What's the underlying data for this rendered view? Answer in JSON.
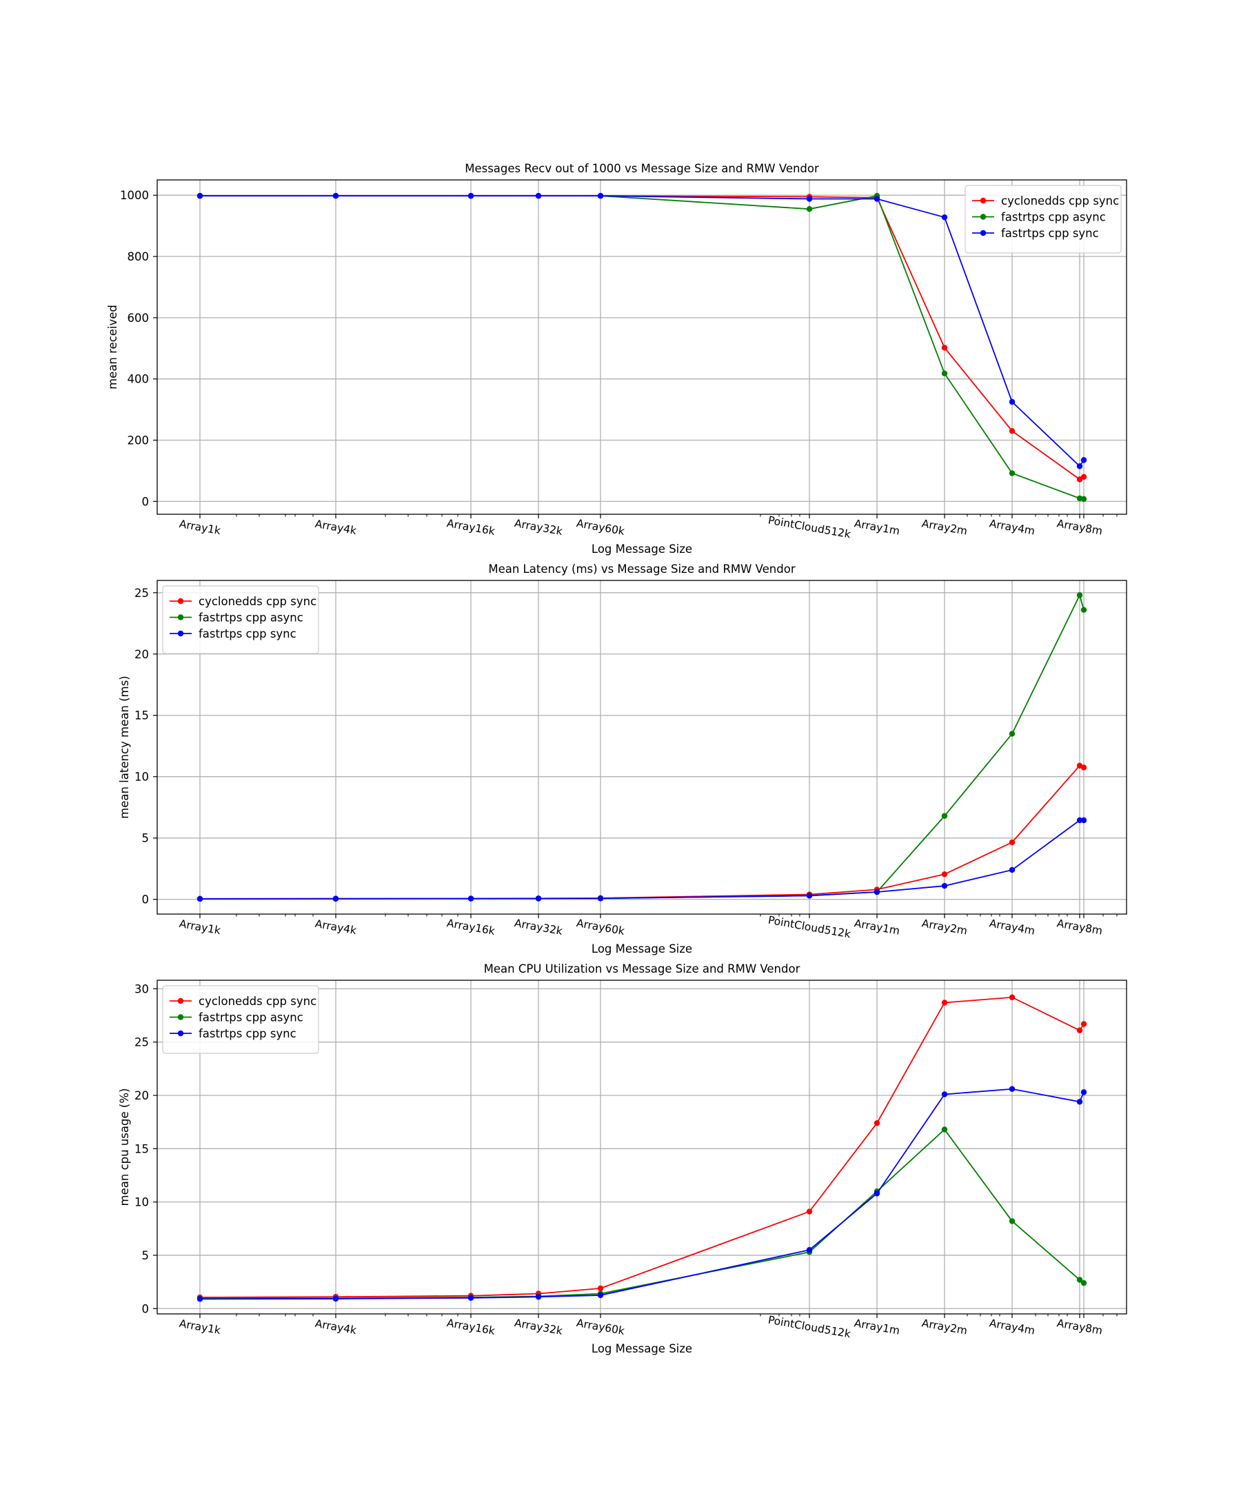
{
  "colors": {
    "cyclonedds": "#ff0000",
    "fastrtps_async": "#008000",
    "fastrtps_sync": "#0000ff",
    "grid": "#b0b0b0"
  },
  "chart_data": [
    {
      "type": "line",
      "title": "Messages Recv out of 1000 vs Message Size and RMW Vendor",
      "xlabel": "Log Message Size",
      "ylabel": "mean received",
      "xscale": "log",
      "ylim": [
        -42,
        1050
      ],
      "yticks": [
        0,
        200,
        400,
        600,
        800,
        1000
      ],
      "grid": true,
      "legend": "top-right",
      "categories": [
        "Array1k",
        "Array4k",
        "Array16k",
        "Array32k",
        "Array60k",
        "PointCloud512k",
        "Array1m",
        "Array2m",
        "Array4m",
        "Array8m"
      ],
      "series": [
        {
          "name": "cyclonedds cpp sync",
          "color": "#ff0000",
          "values": [
            998,
            998,
            998,
            998,
            998,
            995,
            992,
            502,
            230,
            72
          ],
          "extra": 80
        },
        {
          "name": "fastrtps cpp async",
          "color": "#008000",
          "values": [
            998,
            998,
            998,
            998,
            998,
            955,
            998,
            418,
            92,
            10
          ],
          "extra": 8
        },
        {
          "name": "fastrtps cpp sync",
          "color": "#0000ff",
          "values": [
            998,
            998,
            998,
            998,
            998,
            988,
            988,
            928,
            325,
            115
          ],
          "extra": 135
        }
      ]
    },
    {
      "type": "line",
      "title": "Mean Latency (ms) vs Message Size and RMW Vendor",
      "xlabel": "Log Message Size",
      "ylabel": "mean latency mean (ms)",
      "xscale": "log",
      "ylim": [
        -1.2,
        26
      ],
      "yticks": [
        0,
        5,
        10,
        15,
        20,
        25
      ],
      "grid": true,
      "legend": "top-left",
      "categories": [
        "Array1k",
        "Array4k",
        "Array16k",
        "Array32k",
        "Array60k",
        "PointCloud512k",
        "Array1m",
        "Array2m",
        "Array4m",
        "Array8m"
      ],
      "series": [
        {
          "name": "cyclonedds cpp sync",
          "color": "#ff0000",
          "values": [
            0.05,
            0.06,
            0.07,
            0.08,
            0.1,
            0.4,
            0.8,
            2.05,
            4.65,
            10.9
          ],
          "extra": 10.75
        },
        {
          "name": "fastrtps cpp async",
          "color": "#008000",
          "values": [
            0.04,
            0.05,
            0.06,
            0.07,
            0.08,
            0.3,
            0.6,
            6.8,
            13.5,
            24.8
          ],
          "extra": 23.6
        },
        {
          "name": "fastrtps cpp sync",
          "color": "#0000ff",
          "values": [
            0.04,
            0.05,
            0.06,
            0.07,
            0.08,
            0.3,
            0.6,
            1.1,
            2.4,
            6.45
          ],
          "extra": 6.45
        }
      ]
    },
    {
      "type": "line",
      "title": "Mean CPU Utilization vs Message Size and RMW Vendor",
      "xlabel": "Log Message Size",
      "ylabel": "mean cpu usage (%)",
      "xscale": "log",
      "ylim": [
        -0.5,
        30.8
      ],
      "yticks": [
        0,
        5,
        10,
        15,
        20,
        25,
        30
      ],
      "grid": true,
      "legend": "top-left",
      "categories": [
        "Array1k",
        "Array4k",
        "Array16k",
        "Array32k",
        "Array60k",
        "PointCloud512k",
        "Array1m",
        "Array2m",
        "Array4m",
        "Array8m"
      ],
      "series": [
        {
          "name": "cyclonedds cpp sync",
          "color": "#ff0000",
          "values": [
            1.05,
            1.1,
            1.2,
            1.4,
            1.9,
            9.1,
            17.4,
            28.7,
            29.2,
            26.1
          ],
          "extra": 26.7
        },
        {
          "name": "fastrtps cpp async",
          "color": "#008000",
          "values": [
            0.95,
            0.97,
            1.05,
            1.15,
            1.4,
            5.3,
            11.0,
            16.8,
            8.2,
            2.7
          ],
          "extra": 2.4
        },
        {
          "name": "fastrtps cpp sync",
          "color": "#0000ff",
          "values": [
            0.9,
            0.92,
            1.0,
            1.1,
            1.25,
            5.5,
            10.8,
            20.1,
            20.6,
            19.4
          ],
          "extra": 20.3
        }
      ]
    }
  ]
}
